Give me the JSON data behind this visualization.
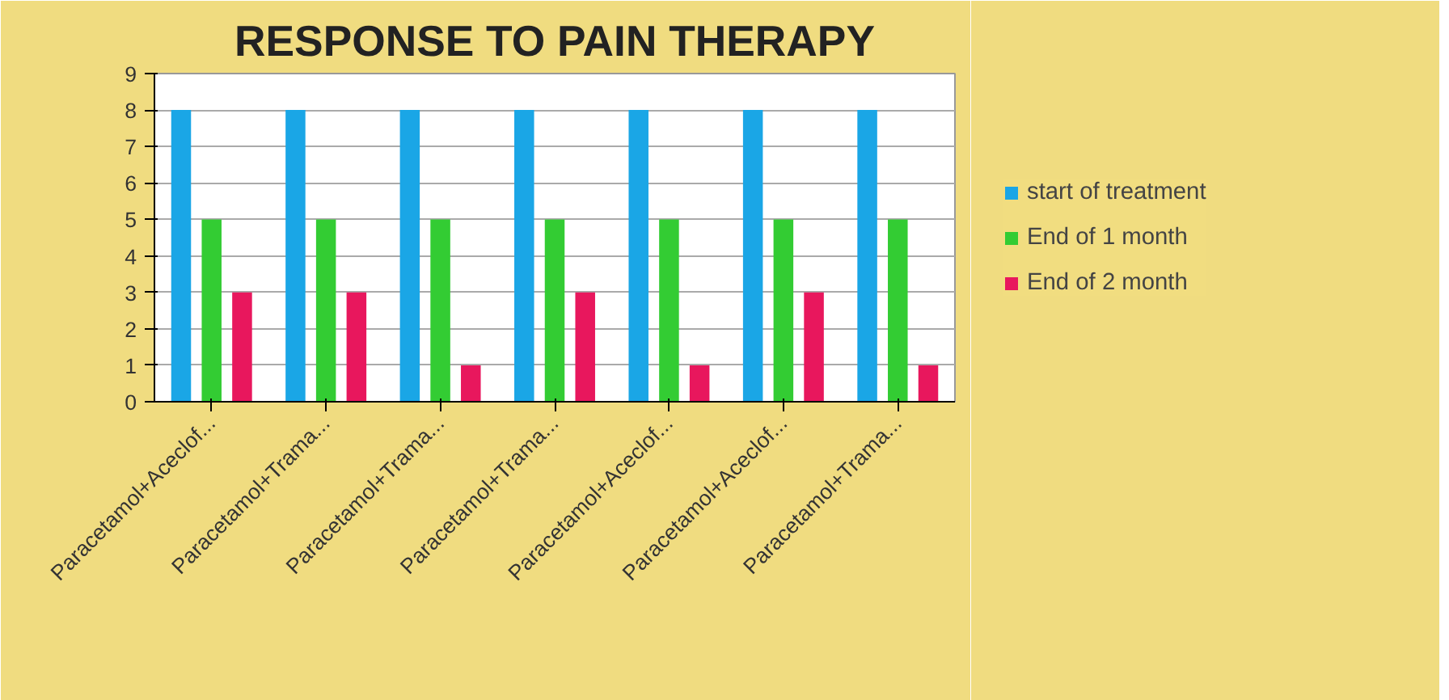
{
  "chart_data": {
    "type": "bar",
    "title": "RESPONSE TO PAIN THERAPY",
    "categories": [
      "Paracetamol+Aceclof...",
      "Paracetamol+Trama...",
      "Paracetamol+Trama...",
      "Paracetamol+Trama...",
      "Paracetamol+Aceclof...",
      "Paracetamol+Aceclof...",
      "Paracetamol+Trama..."
    ],
    "series": [
      {
        "name": "start of treatment",
        "color": "#1aa6e6",
        "values": [
          8,
          8,
          8,
          8,
          8,
          8,
          8
        ]
      },
      {
        "name": "End of 1 month",
        "color": "#33cc33",
        "values": [
          5,
          5,
          5,
          5,
          5,
          5,
          5
        ]
      },
      {
        "name": "End of 2 month",
        "color": "#e8175d",
        "values": [
          3,
          3,
          1,
          3,
          1,
          3,
          1
        ]
      }
    ],
    "ylim": [
      0,
      9
    ],
    "yticks": [
      0,
      1,
      2,
      3,
      4,
      5,
      6,
      7,
      8,
      9
    ],
    "grid": "y",
    "legend": "right"
  }
}
